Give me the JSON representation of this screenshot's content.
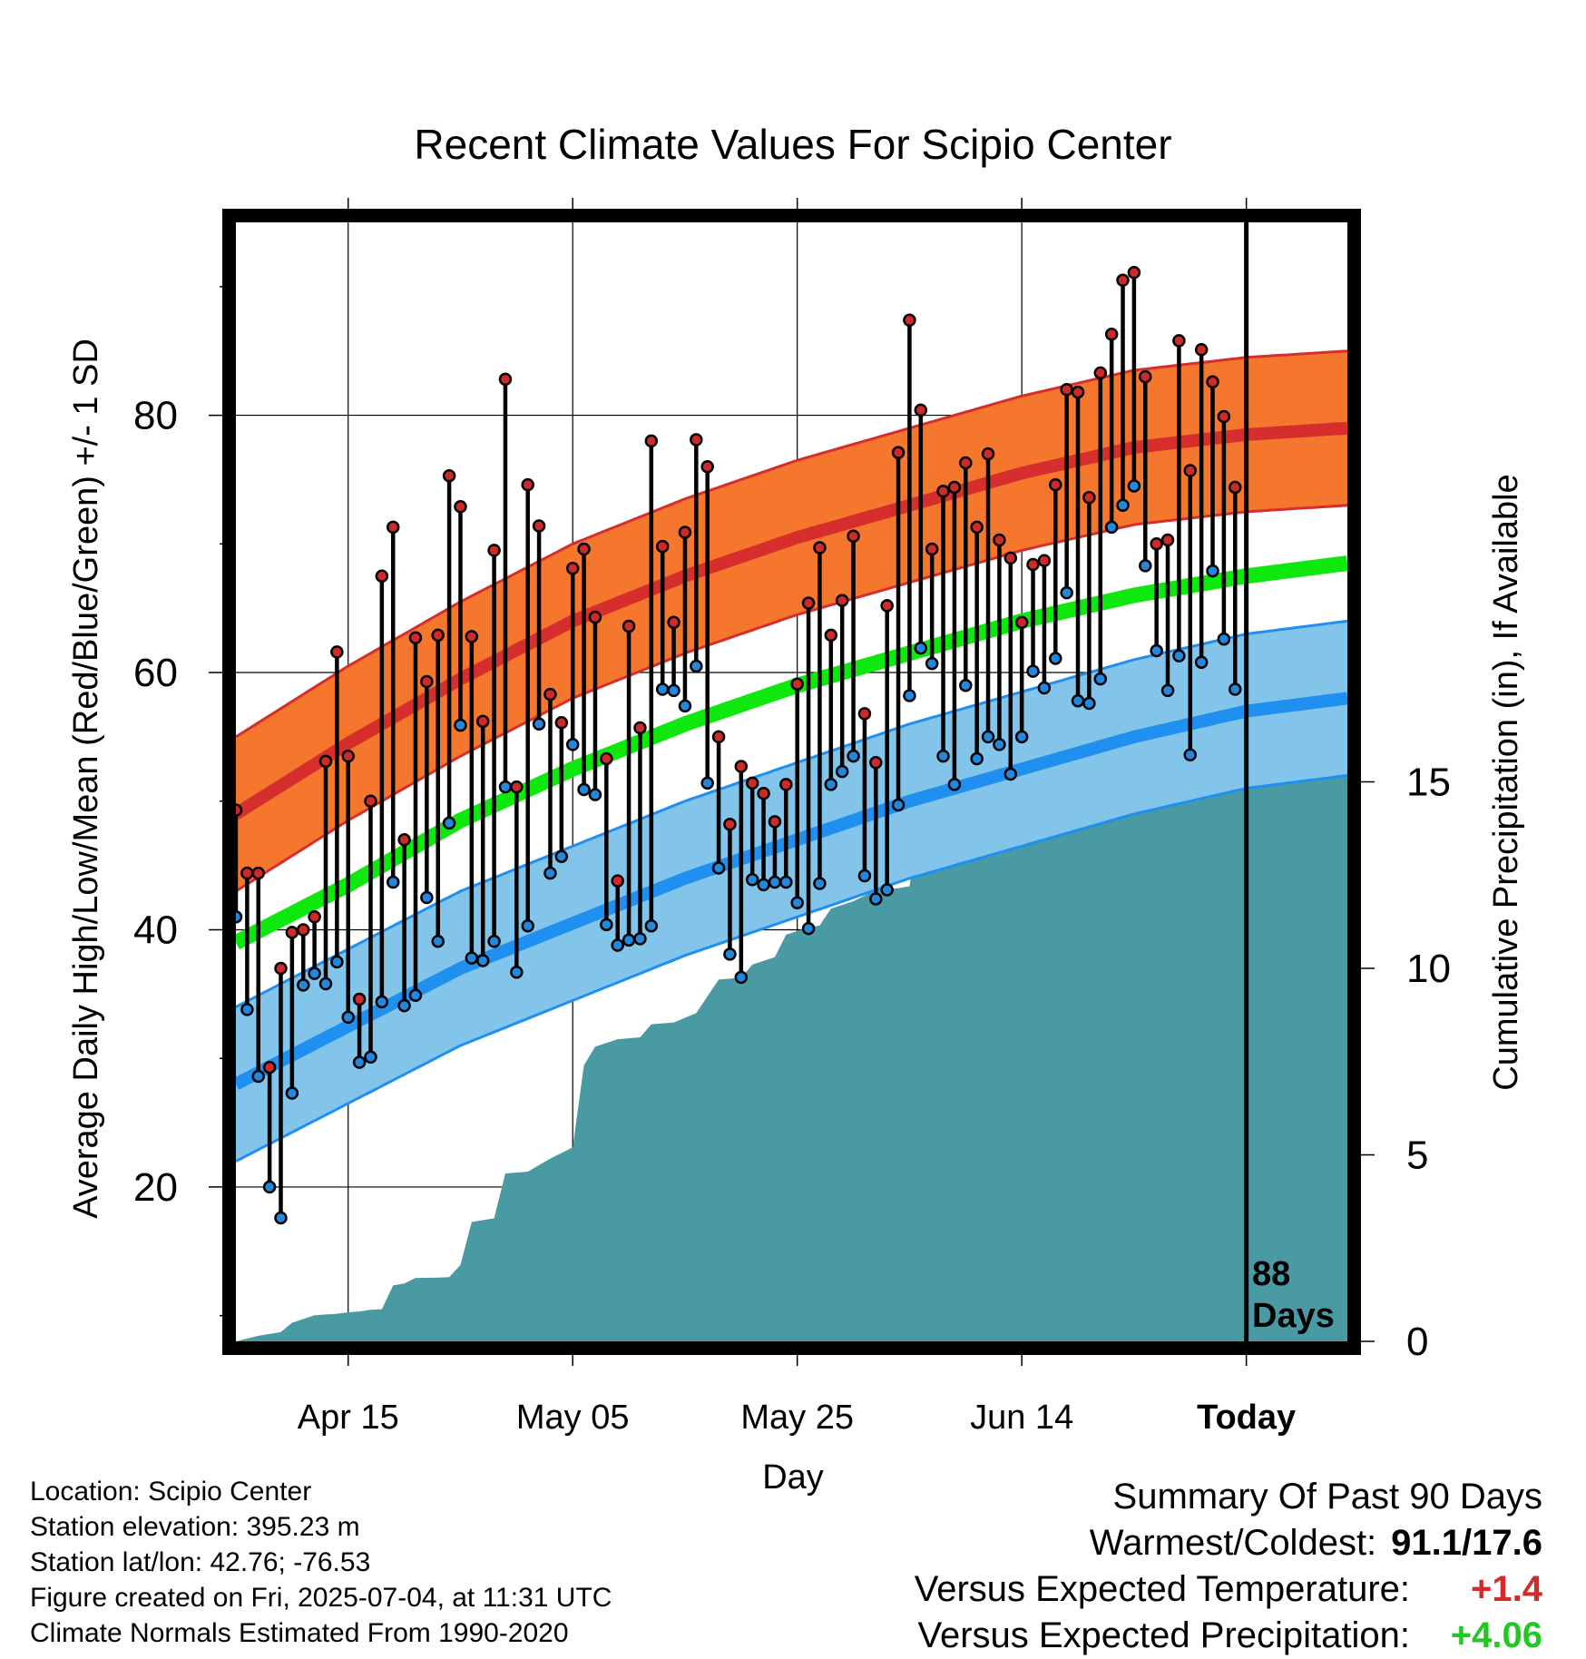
{
  "chart_data": {
    "type": "line",
    "title": "Recent Climate Values For Scipio Center",
    "xlabel": "Day",
    "ylabel": "Average Daily High/Low/Mean (Red/Blue/Green) +/- 1 SD",
    "y2label": "Cumulative Precipitation (in), If Available",
    "ylim": [
      8,
      95
    ],
    "y2lim": [
      0,
      30
    ],
    "xlim": [
      -90,
      9
    ],
    "x_unit": "days relative to today",
    "x_ticks": [
      -80,
      -60,
      -40,
      -20,
      0
    ],
    "x_tick_labels": [
      "Apr 15",
      "May 05",
      "May 25",
      "Jun 14",
      "Today"
    ],
    "y_ticks": [
      20,
      40,
      60,
      80
    ],
    "y2_ticks": [
      0,
      5,
      10,
      15
    ],
    "grid": true,
    "today_marker": {
      "x": 0,
      "label_line1": "88",
      "label_line2": "Days"
    },
    "colors": {
      "high_band": "#f4772d",
      "high_mean": "#d62d2d",
      "low_band": "#83c4ea",
      "low_mean": "#1f8ff0",
      "mean": "#0ee80e",
      "precip": "#4a9aa3",
      "high_dot": "#cf2a2a",
      "low_dot": "#2288dd"
    },
    "normals": {
      "x": [
        -90,
        -80,
        -70,
        -60,
        -50,
        -40,
        -30,
        -20,
        -10,
        0,
        9
      ],
      "high_mean": [
        49,
        54.5,
        59.5,
        64,
        67.5,
        70.5,
        73,
        75.5,
        77.5,
        78.5,
        79
      ],
      "high_sd": 6,
      "low_mean": [
        28,
        32.5,
        37,
        40.5,
        44,
        47,
        50,
        52.5,
        55,
        57,
        58
      ],
      "low_sd": 6,
      "mean": [
        39,
        43.5,
        48.5,
        52.5,
        56,
        59,
        61.5,
        64,
        66,
        67.5,
        68.5
      ]
    },
    "daily": {
      "x": [
        -90,
        -89,
        -88,
        -87,
        -86,
        -85,
        -84,
        -83,
        -82,
        -81,
        -80,
        -79,
        -78,
        -77,
        -76,
        -75,
        -74,
        -73,
        -72,
        -71,
        -70,
        -69,
        -68,
        -67,
        -66,
        -65,
        -64,
        -63,
        -62,
        -61,
        -60,
        -59,
        -58,
        -57,
        -56,
        -55,
        -54,
        -53,
        -52,
        -51,
        -50,
        -49,
        -48,
        -47,
        -46,
        -45,
        -44,
        -43,
        -42,
        -41,
        -40,
        -39,
        -38,
        -37,
        -36,
        -35,
        -34,
        -33,
        -32,
        -31,
        -30,
        -29,
        -28,
        -27,
        -26,
        -25,
        -24,
        -23,
        -22,
        -21,
        -20,
        -19,
        -18,
        -17,
        -16,
        -15,
        -14,
        -13,
        -12,
        -11,
        -10,
        -9,
        -8,
        -7,
        -6,
        -5,
        -4,
        -3,
        -2,
        -1
      ],
      "high": [
        49.3,
        44.4,
        44.4,
        29.3,
        37,
        39.8,
        40,
        41,
        53.1,
        61.6,
        53.5,
        34.6,
        50,
        67.5,
        71.3,
        47,
        62.7,
        59.3,
        62.9,
        75.3,
        72.9,
        62.8,
        56.2,
        69.5,
        82.8,
        51.1,
        74.6,
        71.4,
        58.3,
        56.1,
        68.1,
        69.6,
        64.3,
        53.3,
        43.8,
        63.6,
        55.7,
        78,
        69.8,
        63.9,
        70.9,
        78.1,
        76,
        55,
        48.2,
        52.7,
        51.4,
        50.6,
        48.4,
        51.3,
        59.1,
        65.4,
        69.7,
        62.9,
        65.6,
        70.6,
        56.8,
        53,
        65.2,
        77.1,
        87.4,
        80.4,
        69.6,
        74.1,
        74.4,
        76.3,
        71.3,
        77,
        70.3,
        68.9,
        63.9,
        68.4,
        68.7,
        74.6,
        82,
        81.8,
        73.6,
        83.3,
        86.3,
        90.5,
        91.1,
        83,
        70,
        70.3,
        85.8,
        75.7,
        85.1,
        82.6,
        79.9,
        74.4
      ],
      "low": [
        41,
        33.8,
        28.6,
        20,
        17.6,
        27.3,
        35.7,
        36.6,
        35.8,
        37.5,
        33.2,
        29.7,
        30.1,
        34.4,
        43.7,
        34.1,
        34.9,
        42.5,
        39.1,
        48.3,
        55.9,
        37.8,
        37.6,
        39.1,
        51.1,
        36.7,
        40.3,
        56,
        44.4,
        45.7,
        54.4,
        50.9,
        50.5,
        40.4,
        38.8,
        39.2,
        39.3,
        40.3,
        58.7,
        58.6,
        57.4,
        60.5,
        51.4,
        44.8,
        38.1,
        36.3,
        43.9,
        43.5,
        43.7,
        43.7,
        42.1,
        40.1,
        43.6,
        51.3,
        52.3,
        53.5,
        44.2,
        42.4,
        43.1,
        49.7,
        58.2,
        61.9,
        60.7,
        53.5,
        51.3,
        59,
        53.3,
        55,
        54.4,
        52.1,
        55,
        60.1,
        58.8,
        61.1,
        66.2,
        57.8,
        57.6,
        59.5,
        71.3,
        73,
        74.5,
        68.3,
        61.7,
        58.6,
        61.3,
        53.6,
        60.8,
        67.9,
        62.6,
        58.7
      ]
    },
    "precip": {
      "x": [
        -90,
        -88,
        -86,
        -85,
        -84,
        -83,
        -82,
        -81,
        -80,
        -79,
        -78,
        -77,
        -76,
        -75,
        -74,
        -72,
        -71,
        -70,
        -69,
        -67,
        -66,
        -64,
        -62,
        -60,
        -59,
        -58,
        -56,
        -54,
        -53,
        -51,
        -49,
        -47,
        -45,
        -44,
        -42,
        -41,
        -39,
        -38,
        -37,
        -35,
        -33,
        -31,
        -30,
        -29,
        -28,
        -27,
        -26,
        -25,
        -24,
        -22,
        -20,
        -18,
        -16,
        -15,
        -13,
        -10,
        -8,
        -6,
        -3,
        -1,
        0,
        9
      ],
      "cumulative": [
        0,
        0.15,
        0.25,
        0.5,
        0.6,
        0.7,
        0.72,
        0.74,
        0.78,
        0.8,
        0.85,
        0.86,
        1.5,
        1.55,
        1.7,
        1.71,
        1.72,
        2.05,
        3.2,
        3.3,
        4.5,
        4.55,
        4.9,
        5.2,
        7.4,
        7.9,
        8.1,
        8.15,
        8.5,
        8.55,
        8.8,
        9.7,
        9.75,
        10.1,
        10.3,
        10.9,
        11.1,
        11.15,
        11.6,
        11.8,
        12.1,
        12.15,
        12.2,
        14.2,
        14.5,
        14.6,
        15.3,
        15.4,
        15.5,
        15.55,
        15.6,
        15.65,
        15.75,
        16.0,
        16.05,
        16.15,
        16.2,
        16.3,
        16.35,
        16.6,
        16.65,
        16.65
      ]
    }
  },
  "info": {
    "location": "Location: Scipio Center",
    "elevation": "Station elevation: 395.23 m",
    "latlon": "Station lat/lon: 42.76; -76.53",
    "created": "Figure created on Fri, 2025-07-04, at 11:31 UTC",
    "normals_note": "Climate Normals Estimated From 1990-2020"
  },
  "summary": {
    "title": "Summary Of Past 90 Days",
    "warmest_label": "Warmest/Coldest:",
    "warmest_value": "91.1/17.6",
    "temp_label": "Versus Expected Temperature:",
    "temp_value": "+1.4",
    "temp_color": "#d42a2a",
    "precip_label": "Versus Expected Precipitation:",
    "precip_value": "+4.06",
    "precip_color": "#22c822"
  }
}
